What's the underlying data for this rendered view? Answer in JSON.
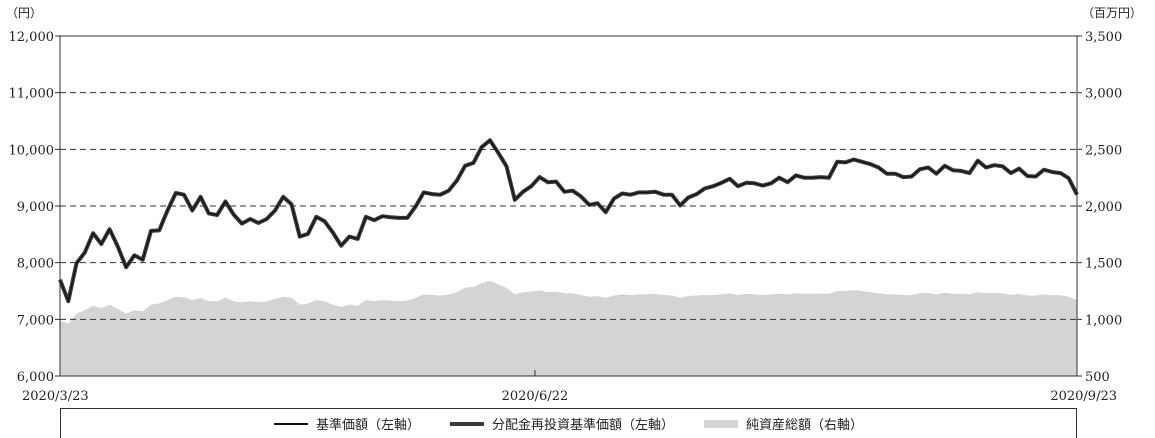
{
  "chart_data": {
    "type": "line",
    "left_unit": "（円）",
    "right_unit": "（百万円）",
    "left_axis": {
      "min": 6000,
      "max": 12000,
      "ticks": [
        "6,000",
        "7,000",
        "8,000",
        "9,000",
        "10,000",
        "11,000",
        "12,000"
      ]
    },
    "right_axis": {
      "min": 500,
      "max": 3500,
      "ticks": [
        "500",
        "1,000",
        "1,500",
        "2,000",
        "2,500",
        "3,000",
        "3,500"
      ]
    },
    "x_labels": [
      "2020/3/23",
      "2020/6/22",
      "2020/9/23"
    ],
    "gridlines": "dashed at each left-axis tick",
    "legend_position": "bottom",
    "series": [
      {
        "name": "基準価額（左軸）",
        "axis": "left",
        "style": "thin-line",
        "color": "#111111",
        "values": [
          7700,
          7320,
          7990,
          8180,
          8520,
          8330,
          8590,
          8280,
          7920,
          8130,
          8050,
          8560,
          8570,
          8920,
          9230,
          9200,
          8920,
          9160,
          8870,
          8840,
          9080,
          8850,
          8690,
          8770,
          8700,
          8770,
          8920,
          9160,
          9030,
          8460,
          8510,
          8810,
          8730,
          8530,
          8300,
          8460,
          8420,
          8810,
          8750,
          8820,
          8800,
          8790,
          8790,
          8990,
          9240,
          9210,
          9200,
          9270,
          9450,
          9710,
          9760,
          10040,
          10160,
          9940,
          9700,
          9110,
          9250,
          9350,
          9510,
          9420,
          9430,
          9250,
          9270,
          9170,
          9020,
          9050,
          8890,
          9130,
          9220,
          9200,
          9240,
          9240,
          9250,
          9200,
          9200,
          9010,
          9150,
          9210,
          9310,
          9350,
          9410,
          9480,
          9350,
          9410,
          9400,
          9360,
          9400,
          9500,
          9420,
          9540,
          9500,
          9500,
          9510,
          9500,
          9780,
          9770,
          9820,
          9780,
          9740,
          9680,
          9570,
          9570,
          9510,
          9520,
          9650,
          9680,
          9570,
          9710,
          9630,
          9620,
          9580,
          9800,
          9680,
          9720,
          9700,
          9580,
          9660,
          9530,
          9520,
          9640,
          9600,
          9580,
          9490,
          9200
        ]
      },
      {
        "name": "分配金再投資基準価額（左軸）",
        "axis": "left",
        "style": "thick-line",
        "color": "#3a3a3a",
        "values": [
          7700,
          7320,
          7990,
          8180,
          8520,
          8330,
          8590,
          8280,
          7920,
          8130,
          8050,
          8560,
          8570,
          8920,
          9230,
          9200,
          8920,
          9160,
          8870,
          8840,
          9080,
          8850,
          8690,
          8770,
          8700,
          8770,
          8920,
          9160,
          9030,
          8460,
          8510,
          8810,
          8730,
          8530,
          8300,
          8460,
          8420,
          8810,
          8750,
          8820,
          8800,
          8790,
          8790,
          8990,
          9240,
          9210,
          9200,
          9270,
          9450,
          9710,
          9760,
          10040,
          10160,
          9940,
          9700,
          9110,
          9250,
          9350,
          9510,
          9420,
          9430,
          9250,
          9270,
          9170,
          9020,
          9050,
          8890,
          9130,
          9220,
          9200,
          9240,
          9240,
          9250,
          9200,
          9200,
          9010,
          9150,
          9210,
          9310,
          9350,
          9410,
          9480,
          9350,
          9410,
          9400,
          9360,
          9400,
          9500,
          9420,
          9540,
          9500,
          9500,
          9510,
          9500,
          9780,
          9770,
          9820,
          9780,
          9740,
          9680,
          9570,
          9570,
          9510,
          9520,
          9650,
          9680,
          9570,
          9710,
          9630,
          9620,
          9580,
          9800,
          9680,
          9720,
          9700,
          9580,
          9660,
          9530,
          9520,
          9640,
          9600,
          9580,
          9490,
          9200
        ]
      },
      {
        "name": "純資産総額（右軸）",
        "axis": "right",
        "style": "area",
        "color": "#d3d4d6",
        "values": [
          990,
          960,
          1050,
          1080,
          1120,
          1100,
          1130,
          1090,
          1050,
          1080,
          1070,
          1130,
          1140,
          1170,
          1200,
          1195,
          1170,
          1190,
          1160,
          1160,
          1190,
          1160,
          1150,
          1160,
          1150,
          1160,
          1180,
          1200,
          1190,
          1130,
          1140,
          1170,
          1160,
          1130,
          1110,
          1130,
          1120,
          1170,
          1160,
          1170,
          1165,
          1160,
          1165,
          1190,
          1220,
          1215,
          1210,
          1220,
          1240,
          1280,
          1285,
          1320,
          1340,
          1310,
          1280,
          1220,
          1240,
          1245,
          1255,
          1240,
          1245,
          1230,
          1230,
          1215,
          1200,
          1205,
          1190,
          1210,
          1220,
          1215,
          1220,
          1220,
          1225,
          1215,
          1210,
          1190,
          1205,
          1210,
          1215,
          1215,
          1220,
          1230,
          1215,
          1225,
          1220,
          1215,
          1220,
          1225,
          1220,
          1230,
          1225,
          1225,
          1228,
          1225,
          1250,
          1250,
          1258,
          1250,
          1240,
          1230,
          1220,
          1220,
          1215,
          1215,
          1230,
          1232,
          1220,
          1235,
          1225,
          1225,
          1220,
          1240,
          1230,
          1232,
          1230,
          1215,
          1225,
          1210,
          1210,
          1220,
          1215,
          1212,
          1200,
          1170
        ]
      }
    ]
  }
}
